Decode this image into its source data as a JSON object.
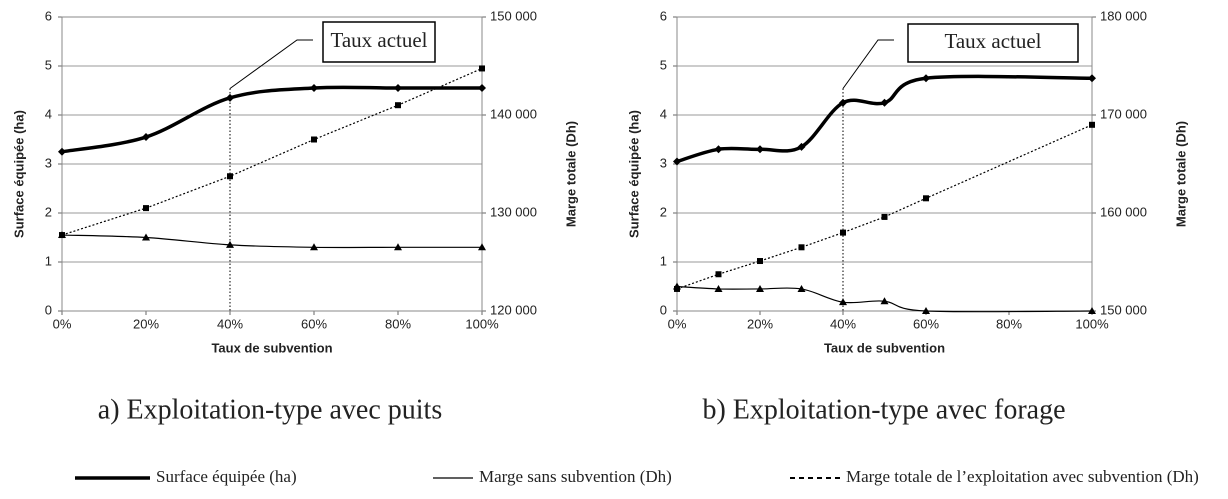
{
  "chart_data": [
    {
      "type": "line",
      "caption": "a) Exploitation-type avec puits",
      "annotation": "Taux actuel",
      "annotation_x": 40,
      "xlabel": "Taux de subvention",
      "ylabel": "Surface équipée (ha)",
      "y2label": "Marge totale (Dh)",
      "x": [
        0,
        20,
        40,
        60,
        80,
        100
      ],
      "xlim": [
        0,
        100
      ],
      "xticks": [
        {
          "value": 0,
          "label": "0%"
        },
        {
          "value": 20,
          "label": "20%"
        },
        {
          "value": 40,
          "label": "40%"
        },
        {
          "value": 60,
          "label": "60%"
        },
        {
          "value": 80,
          "label": "80%"
        },
        {
          "value": 100,
          "label": "100%"
        }
      ],
      "ylim": [
        0,
        6
      ],
      "yticks": [
        0,
        1,
        2,
        3,
        4,
        5,
        6
      ],
      "y2lim": [
        120000,
        150000
      ],
      "y2ticks": [
        {
          "value": 120000,
          "label": "120 000"
        },
        {
          "value": 130000,
          "label": "130 000"
        },
        {
          "value": 140000,
          "label": "140 000"
        },
        {
          "value": 150000,
          "label": "150 000"
        }
      ],
      "grid": true,
      "series": [
        {
          "name": "Surface équipée (ha)",
          "color": "#000000",
          "linewidth": 3.5,
          "dash": false,
          "marker": "diamond",
          "values": [
            3.25,
            3.55,
            4.35,
            4.55,
            4.55,
            4.55
          ]
        },
        {
          "name": "Marge sans subvention (Dh)",
          "color": "#000000",
          "linewidth": 1.2,
          "dash": false,
          "marker": "triangle",
          "axis": "y2",
          "values": [
            127750,
            127500,
            126750,
            126500,
            126500,
            126500
          ]
        },
        {
          "name": "Marge totale de l’exploitation avec subvention (Dh)",
          "color": "#000000",
          "linewidth": 1.2,
          "dash": true,
          "marker": "square",
          "axis": "y2",
          "values": [
            127750,
            130500,
            133750,
            137500,
            141000,
            144750
          ]
        }
      ]
    },
    {
      "type": "line",
      "caption": "b) Exploitation-type avec forage",
      "annotation": "Taux actuel",
      "annotation_x": 40,
      "xlabel": "Taux de subvention",
      "ylabel": "Surface équipée (ha)",
      "y2label": "Marge totale (Dh)",
      "x": [
        0,
        10,
        20,
        30,
        40,
        50,
        60,
        100
      ],
      "xlim": [
        0,
        100
      ],
      "xticks": [
        {
          "value": 0,
          "label": "0%"
        },
        {
          "value": 20,
          "label": "20%"
        },
        {
          "value": 40,
          "label": "40%"
        },
        {
          "value": 60,
          "label": "60%"
        },
        {
          "value": 80,
          "label": "80%"
        },
        {
          "value": 100,
          "label": "100%"
        }
      ],
      "ylim": [
        0,
        6
      ],
      "yticks": [
        0,
        1,
        2,
        3,
        4,
        5,
        6
      ],
      "y2lim": [
        150000,
        180000
      ],
      "y2ticks": [
        {
          "value": 150000,
          "label": "150 000"
        },
        {
          "value": 160000,
          "label": "160 000"
        },
        {
          "value": 170000,
          "label": "170 000"
        },
        {
          "value": 180000,
          "label": "180 000"
        }
      ],
      "grid": true,
      "series": [
        {
          "name": "Surface équipée (ha)",
          "color": "#000000",
          "linewidth": 3.5,
          "dash": false,
          "marker": "diamond",
          "values": [
            3.05,
            3.3,
            3.3,
            3.35,
            4.25,
            4.25,
            4.75,
            4.75
          ]
        },
        {
          "name": "Marge sans subvention (Dh)",
          "color": "#000000",
          "linewidth": 1.2,
          "dash": false,
          "marker": "triangle",
          "axis": "y2",
          "values": [
            152500,
            152250,
            152250,
            152250,
            150900,
            151000,
            150000,
            150000
          ]
        },
        {
          "name": "Marge totale de l’exploitation avec subvention (Dh)",
          "color": "#000000",
          "linewidth": 1.2,
          "dash": true,
          "marker": "square",
          "axis": "y2",
          "values": [
            152250,
            153750,
            155100,
            156500,
            158000,
            159600,
            161500,
            169000
          ]
        }
      ]
    }
  ]
}
